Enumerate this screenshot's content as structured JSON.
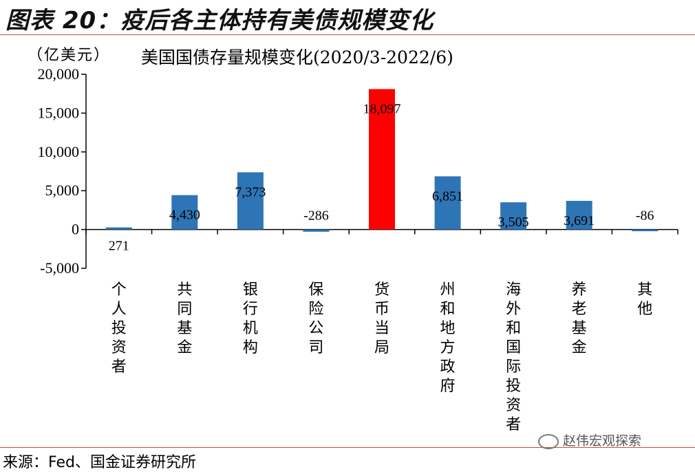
{
  "header": {
    "figure_title": "图表 20：疫后各主体持有美债规模变化"
  },
  "chart_data": {
    "type": "bar",
    "title": "美国国债存量规模变化(2020/3-2022/6)",
    "unit_label": "（亿美元）",
    "ylim": [
      -5000,
      20000
    ],
    "yticks": [
      -5000,
      0,
      5000,
      10000,
      15000,
      20000
    ],
    "ytick_labels": [
      "-5,000",
      "0",
      "5,000",
      "10,000",
      "15,000",
      "20,000"
    ],
    "categories": [
      "个人投资者",
      "共同基金",
      "银行机构",
      "保险公司",
      "货币当局",
      "州和地方政府",
      "海外和国际投资者",
      "养老基金",
      "其他"
    ],
    "values": [
      271,
      4430,
      7373,
      -286,
      18097,
      6851,
      3505,
      3691,
      -86
    ],
    "value_labels": [
      "271",
      "4,430",
      "7,373",
      "-286",
      "18,097",
      "6,851",
      "3,505",
      "3,691",
      "-86"
    ],
    "colors": {
      "default": "#2e75b6",
      "highlight": "#ff0000"
    },
    "highlight_index": 4,
    "grid": false,
    "legend": "none"
  },
  "footer": {
    "source": "来源：Fed、国金证券研究所",
    "watermark": "赵伟宏观探索"
  }
}
